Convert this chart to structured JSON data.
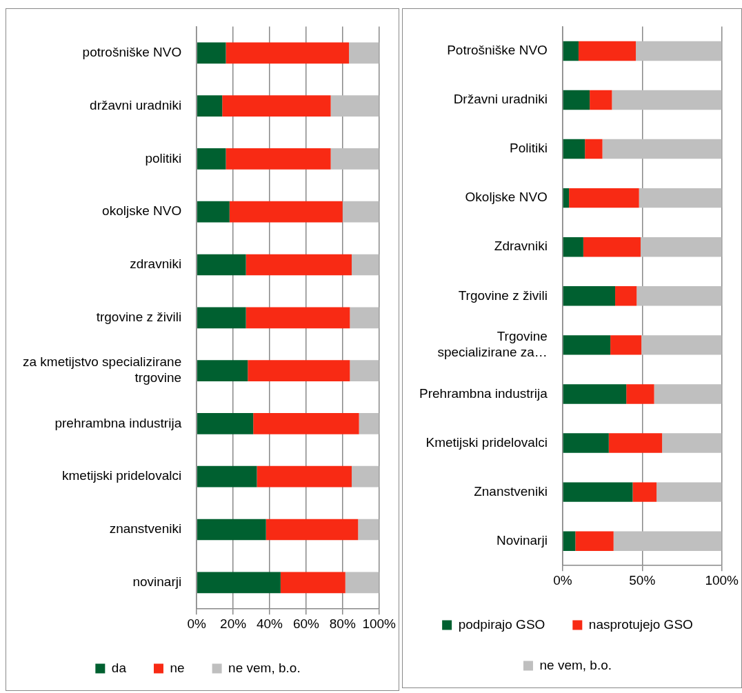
{
  "chart_data": [
    {
      "type": "bar",
      "orientation": "horizontal",
      "stacked": true,
      "categories": [
        "potrošniške NVO",
        "državni uradniki",
        "politiki",
        "okoljske NVO",
        "zdravniki",
        "trgovine z živili",
        "za kmetijstvo specializirane trgovine",
        "prehrambna industrija",
        "kmetijski pridelovalci",
        "znanstveniki",
        "novinarji"
      ],
      "series": [
        {
          "name": "da",
          "color": "#006030",
          "values": [
            16,
            14,
            16,
            18,
            27,
            27,
            28,
            31,
            33,
            38,
            46
          ]
        },
        {
          "name": "ne",
          "color": "#f82a14",
          "values": [
            67.5,
            59.5,
            57.5,
            62,
            58,
            57,
            56,
            58,
            52,
            50.5,
            35.5
          ]
        },
        {
          "name": "ne vem, b.o.",
          "color": "#bfbfbf",
          "values": [
            16.5,
            26.5,
            26.5,
            20,
            15,
            16,
            16,
            11,
            15,
            11.5,
            18.5
          ]
        }
      ],
      "xlim": [
        0,
        100
      ],
      "xticks": [
        {
          "value": 0,
          "label": "0%"
        },
        {
          "value": 20,
          "label": "20%"
        },
        {
          "value": 40,
          "label": "40%"
        },
        {
          "value": 60,
          "label": "60%"
        },
        {
          "value": 80,
          "label": "80%"
        },
        {
          "value": 100,
          "label": "100%"
        }
      ],
      "grid": "x",
      "legend": "bottom"
    },
    {
      "type": "bar",
      "orientation": "horizontal",
      "stacked": true,
      "categories": [
        "Potrošniške NVO",
        "Državni uradniki",
        "Politiki",
        "Okoljske NVO",
        "Zdravniki",
        "Trgovine z živili",
        "Trgovine specializirane za…",
        "Prehrambna industrija",
        "Kmetijski pridelovalci",
        "Znanstveniki",
        "Novinarji"
      ],
      "series": [
        {
          "name": "podpirajo GSO",
          "color": "#006030",
          "values": [
            10,
            17,
            14,
            4,
            13,
            33,
            30,
            40,
            29,
            44,
            8
          ]
        },
        {
          "name": "nasprotujejo GSO",
          "color": "#f82a14",
          "values": [
            36,
            14,
            11,
            44,
            36,
            13.5,
            19.5,
            17.5,
            33.5,
            15,
            24
          ]
        },
        {
          "name": "ne vem, b.o.",
          "color": "#bfbfbf",
          "values": [
            54,
            69,
            75,
            52,
            51,
            53.5,
            50.5,
            42.5,
            37.5,
            41,
            68
          ]
        }
      ],
      "xlim": [
        0,
        100
      ],
      "xticks": [
        {
          "value": 0,
          "label": "0%"
        },
        {
          "value": 50,
          "label": "50%"
        },
        {
          "value": 100,
          "label": "100%"
        }
      ],
      "grid": "x",
      "legend": "bottom"
    }
  ]
}
